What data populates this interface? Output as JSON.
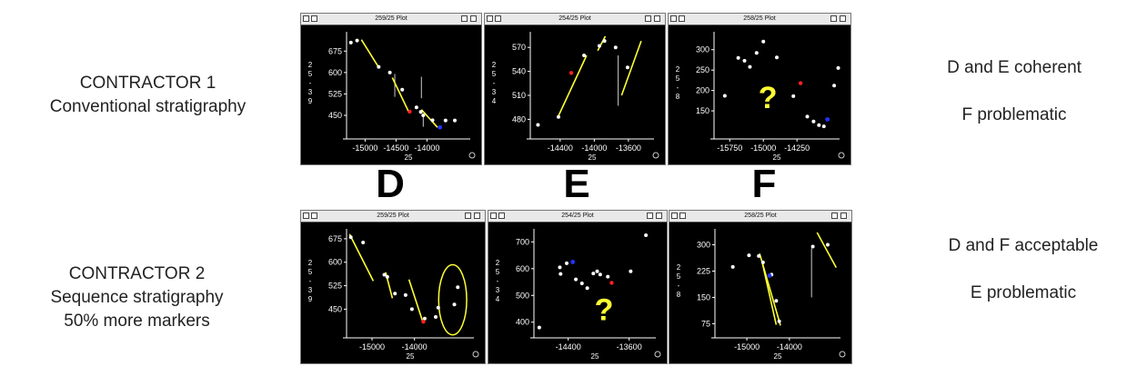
{
  "left_labels": {
    "contractor1": {
      "line1": "CONTRACTOR 1",
      "line2": "Conventional stratigraphy"
    },
    "contractor2": {
      "line1": "CONTRACTOR 2",
      "line2": "Sequence stratigraphy",
      "line3": "50% more markers"
    }
  },
  "right_labels": {
    "top": {
      "line1": "D and E coherent",
      "line2": "F problematic"
    },
    "bottom": {
      "line1": "D and F acceptable",
      "line2": "E problematic"
    }
  },
  "column_letters": [
    "D",
    "E",
    "F"
  ],
  "colors": {
    "points": "#ffffff",
    "fit_line": "#ffff33",
    "question_mark": "#ffff33",
    "red_point": "#ff2222",
    "blue_point": "#2233ff",
    "axis": "#ffffff"
  },
  "chart_data": [
    {
      "id": "top-D",
      "type": "scatter",
      "window_title": "259/25 Plot",
      "xlabel": "25",
      "ylabel": "2 5 - 3 9",
      "xlim": [
        -15300,
        -13300
      ],
      "ylim": [
        380,
        730
      ],
      "xticks": [
        -15000,
        -14500,
        -14000
      ],
      "xtick_labels": [
        "-15000",
        "-14500",
        "-14000"
      ],
      "yticks": [
        675,
        600,
        525,
        450
      ],
      "ytick_labels": [
        "675",
        "600",
        "525",
        "450"
      ],
      "points": [
        [
          -15230,
          705
        ],
        [
          -15130,
          712
        ],
        [
          -14780,
          620
        ],
        [
          -14600,
          600
        ],
        [
          -14400,
          540
        ],
        [
          -14170,
          478
        ],
        [
          -14100,
          462
        ],
        [
          -14060,
          450
        ],
        [
          -13910,
          433
        ],
        [
          -13700,
          432
        ],
        [
          -13550,
          432
        ]
      ],
      "red_points": [
        [
          -14280,
          463
        ]
      ],
      "blue_points": [
        [
          -13790,
          408
        ]
      ],
      "fit_lines": [
        [
          [
            -15060,
            715
          ],
          [
            -14780,
            618
          ]
        ],
        [
          [
            -14560,
            582
          ],
          [
            -14290,
            460
          ]
        ],
        [
          [
            -14090,
            470
          ],
          [
            -13830,
            408
          ]
        ]
      ],
      "vlines": [
        [
          -14520,
          595,
          515
        ],
        [
          -14090,
          585,
          510
        ],
        [
          -14060,
          450,
          410
        ]
      ]
    },
    {
      "id": "top-E",
      "type": "scatter",
      "window_title": "254/25 Plot",
      "xlabel": "25",
      "ylabel": "2 5 - 3 4",
      "xlim": [
        -14750,
        -13300
      ],
      "ylim": [
        460,
        585
      ],
      "xticks": [
        -14400,
        -14000,
        -13600
      ],
      "xtick_labels": [
        "-14400",
        "-14000",
        "-13600"
      ],
      "yticks": [
        570,
        540,
        510,
        480
      ],
      "ytick_labels": [
        "570",
        "540",
        "510",
        "480"
      ],
      "points": [
        [
          -14660,
          473
        ],
        [
          -14420,
          483
        ],
        [
          -14120,
          560
        ],
        [
          -13940,
          572
        ],
        [
          -13880,
          578
        ],
        [
          -13750,
          570
        ],
        [
          -13610,
          545
        ]
      ],
      "red_points": [
        [
          -14270,
          538
        ]
      ],
      "blue_points": [],
      "fit_lines": [
        [
          [
            -14430,
            482
          ],
          [
            -14090,
            560
          ]
        ],
        [
          [
            -13960,
            566
          ],
          [
            -13870,
            584
          ]
        ],
        [
          [
            -13680,
            510
          ],
          [
            -13450,
            578
          ]
        ]
      ],
      "vlines": [
        [
          -13720,
          560,
          497
        ]
      ]
    },
    {
      "id": "top-F",
      "type": "scatter",
      "window_title": "258/25 Plot",
      "xlabel": "25",
      "ylabel": "2 5 - 8",
      "xlim": [
        -16100,
        -13300
      ],
      "ylim": [
        90,
        335
      ],
      "xticks": [
        -15750,
        -15000,
        -14250
      ],
      "xtick_labels": [
        "-15750",
        "-15000",
        "-14250"
      ],
      "yticks": [
        300,
        250,
        200,
        150
      ],
      "ytick_labels": [
        "300",
        "250",
        "200",
        "150"
      ],
      "points": [
        [
          -15860,
          187
        ],
        [
          -15560,
          280
        ],
        [
          -15420,
          273
        ],
        [
          -15300,
          258
        ],
        [
          -15150,
          292
        ],
        [
          -15000,
          320
        ],
        [
          -14700,
          281
        ],
        [
          -14330,
          186
        ],
        [
          -14020,
          136
        ],
        [
          -13880,
          124
        ],
        [
          -13760,
          115
        ],
        [
          -13650,
          112
        ],
        [
          -13420,
          212
        ],
        [
          -13330,
          255
        ]
      ],
      "red_points": [
        [
          -14170,
          218
        ]
      ],
      "blue_points": [
        [
          -13570,
          129
        ]
      ],
      "annotation": "?",
      "annotation_pos": [
        -14900,
        188
      ],
      "fit_lines": [],
      "vlines": []
    },
    {
      "id": "bottom-D",
      "type": "scatter",
      "window_title": "259/25 Plot",
      "xlabel": "25",
      "ylabel": "2 5 - 3 9",
      "xlim": [
        -15600,
        -12600
      ],
      "ylim": [
        370,
        695
      ],
      "xticks": [
        -15000,
        -14000
      ],
      "xtick_labels": [
        "-15000",
        "-14000"
      ],
      "yticks": [
        675,
        600,
        525,
        450
      ],
      "ytick_labels": [
        "675",
        "600",
        "525",
        "450"
      ],
      "points": [
        [
          -15500,
          680
        ],
        [
          -15210,
          663
        ],
        [
          -14710,
          560
        ],
        [
          -14640,
          553
        ],
        [
          -14460,
          500
        ],
        [
          -14210,
          495
        ],
        [
          -14060,
          450
        ],
        [
          -13760,
          420
        ],
        [
          -13500,
          425
        ],
        [
          -13440,
          455
        ],
        [
          -13060,
          465
        ],
        [
          -12980,
          520
        ]
      ],
      "red_points": [
        [
          -13790,
          410
        ]
      ],
      "blue_points": [],
      "fit_lines": [
        [
          [
            -15530,
            690
          ],
          [
            -14970,
            540
          ]
        ],
        [
          [
            -14680,
            568
          ],
          [
            -14520,
            485
          ]
        ],
        [
          [
            -14130,
            545
          ],
          [
            -13800,
            408
          ]
        ]
      ],
      "ellipse": {
        "center": [
          -13100,
          480
        ],
        "rx": 330,
        "ry": 112
      },
      "vlines": []
    },
    {
      "id": "bottom-E",
      "type": "scatter",
      "window_title": "254/25 Plot",
      "xlabel": "25",
      "ylabel": "2 5 - 3 4",
      "xlim": [
        -14850,
        -13250
      ],
      "ylim": [
        355,
        735
      ],
      "xticks": [
        -14400,
        -13600
      ],
      "xtick_labels": [
        "-14400",
        "-13600"
      ],
      "yticks": [
        700,
        600,
        500,
        400
      ],
      "ytick_labels": [
        "700",
        "600",
        "500",
        "400"
      ],
      "points": [
        [
          -14780,
          380
        ],
        [
          -14510,
          605
        ],
        [
          -14500,
          580
        ],
        [
          -14420,
          620
        ],
        [
          -14300,
          560
        ],
        [
          -14220,
          545
        ],
        [
          -14150,
          527
        ],
        [
          -14070,
          582
        ],
        [
          -14020,
          590
        ],
        [
          -13980,
          578
        ],
        [
          -13880,
          570
        ],
        [
          -13580,
          590
        ],
        [
          -13380,
          725
        ]
      ],
      "red_points": [
        [
          -13830,
          547
        ]
      ],
      "blue_points": [
        [
          -14340,
          625
        ]
      ],
      "annotation": "?",
      "annotation_pos": [
        -13930,
        455
      ],
      "fit_lines": [],
      "vlines": []
    },
    {
      "id": "bottom-F",
      "type": "scatter",
      "window_title": "258/25 Plot",
      "xlabel": "25",
      "ylabel": "2 5 - 8",
      "xlim": [
        -15750,
        -12800
      ],
      "ylim": [
        45,
        335
      ],
      "xticks": [
        -15000,
        -14000
      ],
      "xtick_labels": [
        "-15000",
        "-14000"
      ],
      "yticks": [
        300,
        225,
        150,
        75
      ],
      "ytick_labels": [
        "300",
        "225",
        "150",
        "75"
      ],
      "points": [
        [
          -15330,
          237
        ],
        [
          -14950,
          270
        ],
        [
          -14720,
          268
        ],
        [
          -14620,
          250
        ],
        [
          -14420,
          215
        ],
        [
          -14310,
          140
        ],
        [
          -14240,
          82
        ],
        [
          -13450,
          295
        ],
        [
          -13100,
          300
        ]
      ],
      "red_points": [],
      "blue_points": [
        [
          -14470,
          212
        ]
      ],
      "fit_lines": [
        [
          [
            -14700,
            275
          ],
          [
            -14210,
            70
          ]
        ],
        [
          [
            -14630,
            245
          ],
          [
            -14310,
            72
          ]
        ],
        [
          [
            -13350,
            335
          ],
          [
            -12900,
            235
          ]
        ]
      ],
      "vlines": [
        [
          -13480,
          290,
          150
        ]
      ]
    }
  ]
}
